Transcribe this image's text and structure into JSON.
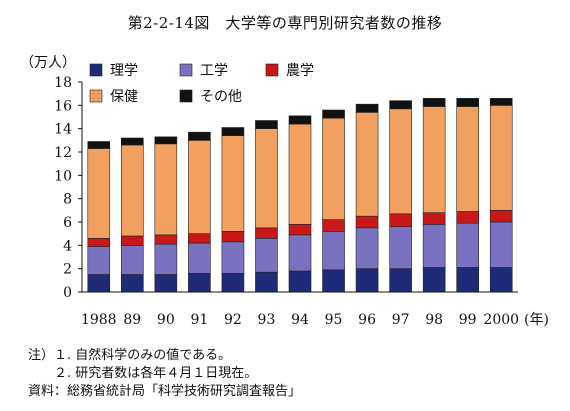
{
  "chart_data": {
    "type": "bar",
    "stacked": true,
    "title": "第2-2-14図　大学等の専門別研究者数の推移",
    "ylabel": "（万人）",
    "xunit": "(年)",
    "ylim": [
      0,
      18
    ],
    "yticks": [
      "0",
      "2",
      "4",
      "6",
      "8",
      "10",
      "12",
      "14",
      "16",
      "18"
    ],
    "categories": [
      "1988",
      "89",
      "90",
      "91",
      "92",
      "93",
      "94",
      "95",
      "96",
      "97",
      "98",
      "99",
      "2000"
    ],
    "legend_position": "top-left",
    "series": [
      {
        "name": "理学",
        "color": "#1f2a78",
        "values": [
          1.5,
          1.5,
          1.5,
          1.6,
          1.6,
          1.7,
          1.8,
          1.9,
          2.0,
          2.0,
          2.1,
          2.1,
          2.1
        ]
      },
      {
        "name": "工学",
        "color": "#7a72c0",
        "values": [
          2.4,
          2.5,
          2.6,
          2.6,
          2.7,
          2.9,
          3.1,
          3.3,
          3.5,
          3.6,
          3.7,
          3.8,
          3.9
        ]
      },
      {
        "name": "農学",
        "color": "#c81818",
        "values": [
          0.7,
          0.8,
          0.8,
          0.8,
          0.9,
          0.9,
          0.9,
          1.0,
          1.0,
          1.1,
          1.0,
          1.0,
          1.0
        ]
      },
      {
        "name": "保健",
        "color": "#f2a060",
        "values": [
          7.7,
          7.8,
          7.8,
          8.0,
          8.2,
          8.5,
          8.6,
          8.7,
          8.9,
          9.0,
          9.1,
          9.0,
          9.0
        ]
      },
      {
        "name": "その他",
        "color": "#111111",
        "values": [
          0.6,
          0.6,
          0.6,
          0.7,
          0.7,
          0.7,
          0.7,
          0.7,
          0.7,
          0.7,
          0.7,
          0.7,
          0.6
        ]
      }
    ]
  },
  "notes": [
    "注）１. 自然科学のみの値である。",
    "　　２. 研究者数は各年４月１日現在。",
    "資料：総務省統計局「科学技術研究調査報告」"
  ]
}
